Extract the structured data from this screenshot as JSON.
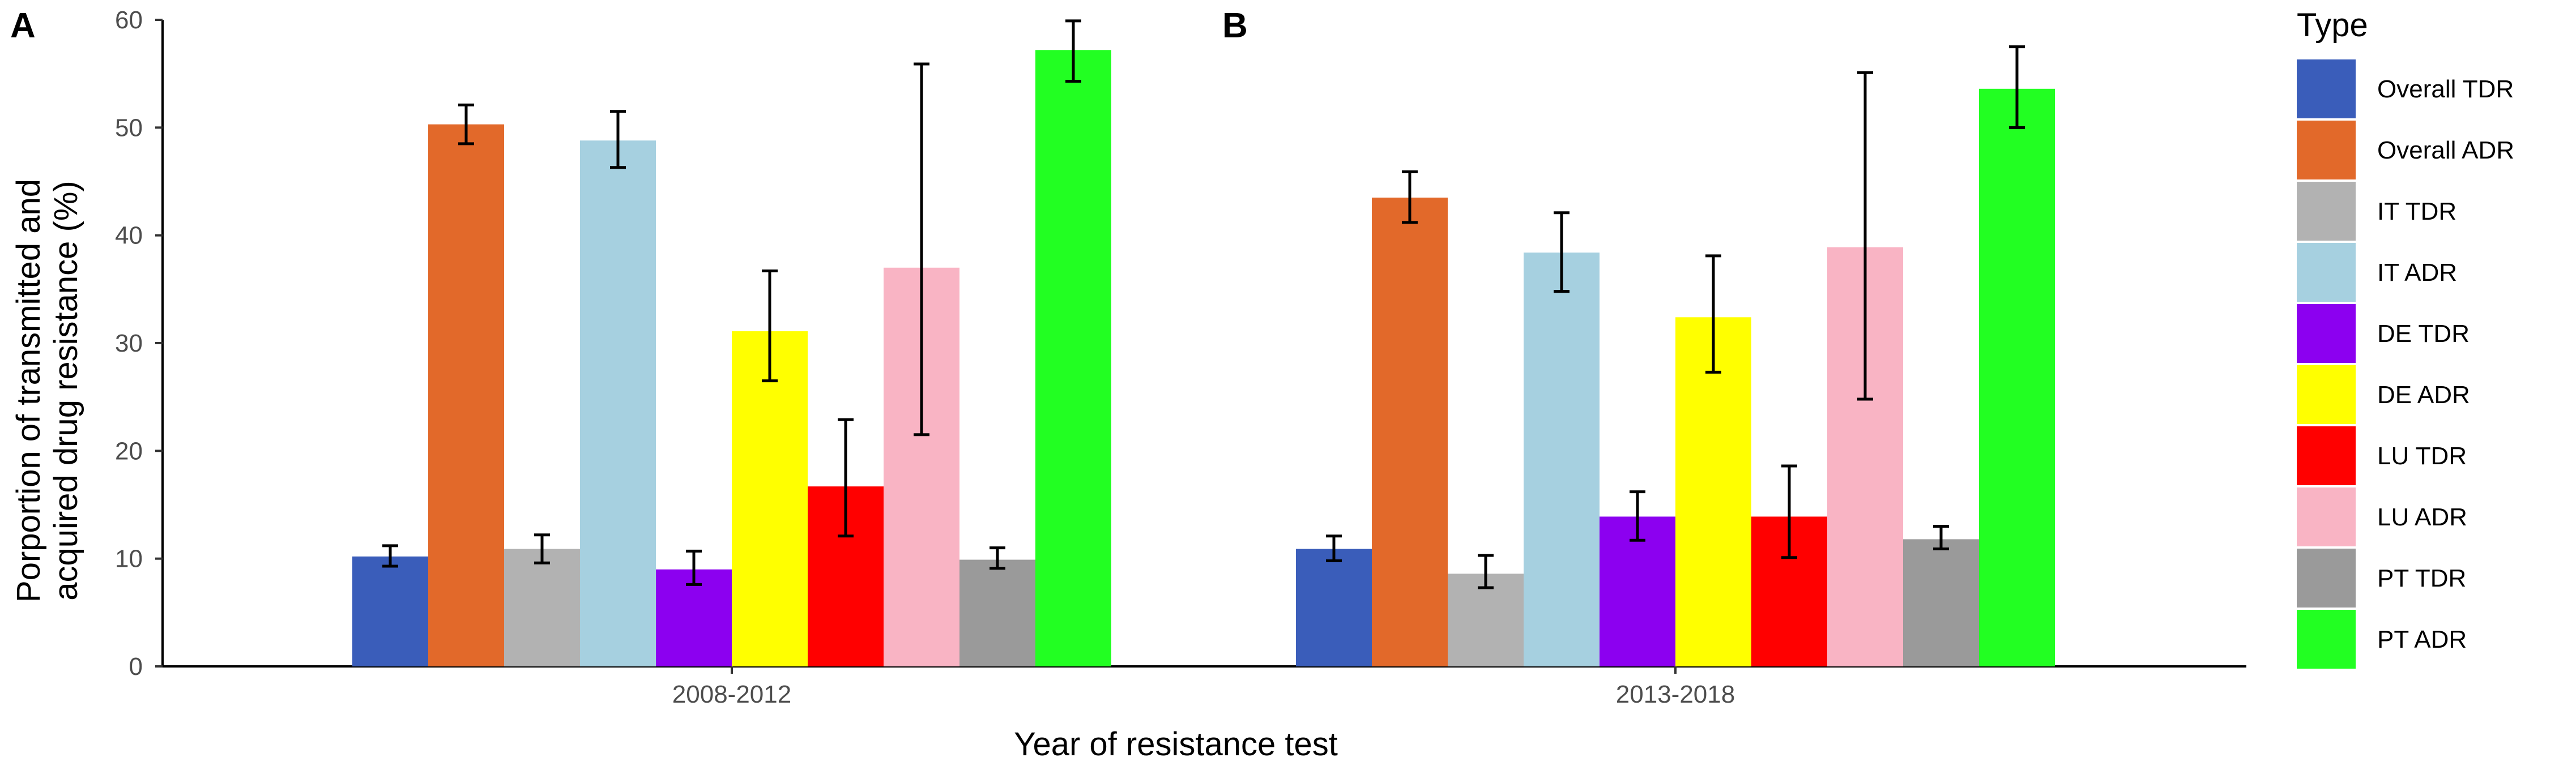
{
  "chart_data": {
    "type": "bar",
    "panels": [
      "A",
      "B"
    ],
    "categories": [
      "2008-2012",
      "2013-2018"
    ],
    "xlabel": "Year of resistance test",
    "ylabel": [
      "Porportion of transmitted and",
      "acquired drug resistance (%)"
    ],
    "ylim": [
      0,
      60
    ],
    "yticks": [
      0,
      10,
      20,
      30,
      40,
      50,
      60
    ],
    "grid": false,
    "legend": {
      "title": "Type",
      "placement": "right"
    },
    "series": [
      {
        "name": "Overall TDR",
        "color": "#3a5dba",
        "values": [
          10.2,
          10.9
        ],
        "err_low": [
          9.3,
          9.8
        ],
        "err_high": [
          11.2,
          12.1
        ]
      },
      {
        "name": "Overall ADR",
        "color": "#e2692a",
        "values": [
          50.3,
          43.5
        ],
        "err_low": [
          48.5,
          41.2
        ],
        "err_high": [
          52.1,
          45.9
        ]
      },
      {
        "name": "IT TDR",
        "color": "#b2b2b2",
        "values": [
          10.9,
          8.6
        ],
        "err_low": [
          9.6,
          7.3
        ],
        "err_high": [
          12.2,
          10.3
        ]
      },
      {
        "name": "IT ADR",
        "color": "#a6d0e0",
        "values": [
          48.8,
          38.4
        ],
        "err_low": [
          46.3,
          34.8
        ],
        "err_high": [
          51.5,
          42.1
        ]
      },
      {
        "name": "DE TDR",
        "color": "#8c00f0",
        "values": [
          9.0,
          13.9
        ],
        "err_low": [
          7.6,
          11.7
        ],
        "err_high": [
          10.7,
          16.2
        ]
      },
      {
        "name": "DE ADR",
        "color": "#ffff00",
        "values": [
          31.1,
          32.4
        ],
        "err_low": [
          26.5,
          27.3
        ],
        "err_high": [
          36.7,
          38.1
        ]
      },
      {
        "name": "LU TDR",
        "color": "#ff0000",
        "values": [
          16.7,
          13.9
        ],
        "err_low": [
          12.1,
          10.1
        ],
        "err_high": [
          22.9,
          18.6
        ]
      },
      {
        "name": "LU ADR",
        "color": "#f9b4c4",
        "values": [
          37.0,
          38.9
        ],
        "err_low": [
          21.5,
          24.8
        ],
        "err_high": [
          55.9,
          55.1
        ]
      },
      {
        "name": "PT TDR",
        "color": "#9a9a9a",
        "values": [
          9.9,
          11.8
        ],
        "err_low": [
          9.1,
          10.9
        ],
        "err_high": [
          11.0,
          13.0
        ]
      },
      {
        "name": "PT ADR",
        "color": "#22ff22",
        "values": [
          57.2,
          53.6
        ],
        "err_low": [
          54.3,
          50.0
        ],
        "err_high": [
          59.9,
          57.5
        ]
      }
    ]
  }
}
